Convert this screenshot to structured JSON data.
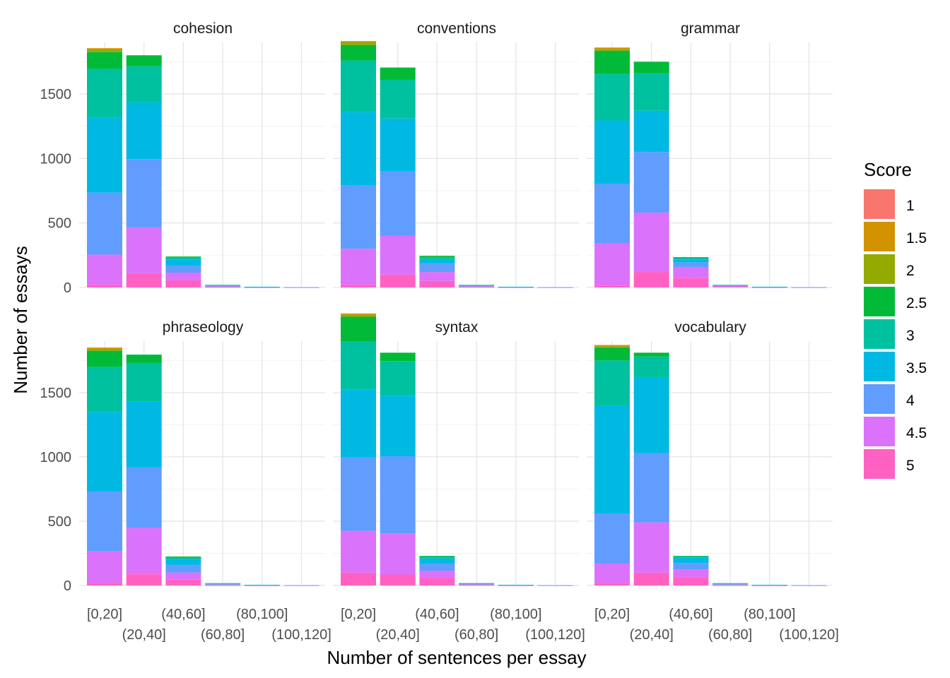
{
  "chart_data": {
    "type": "bar",
    "stacked": true,
    "xlabel": "Number of sentences per essay",
    "ylabel": "Number of essays",
    "ylim": [
      0,
      1900
    ],
    "yticks": [
      0,
      500,
      1000,
      1500
    ],
    "grid": true,
    "categories": [
      "[0,20]",
      "(20,40]",
      "(40,60]",
      "(60,80]",
      "(80,100]",
      "(100,120]"
    ],
    "legend": {
      "title": "Score",
      "placement": "right",
      "entries": [
        "1",
        "1.5",
        "2",
        "2.5",
        "3",
        "3.5",
        "4",
        "4.5",
        "5"
      ],
      "colors": [
        "#F8766D",
        "#D39200",
        "#93AA00",
        "#00BA38",
        "#00C19F",
        "#00B9E3",
        "#619CFF",
        "#DB72FB",
        "#FF61C3"
      ]
    },
    "facets": [
      {
        "title": "cohesion",
        "series_by_category": [
          [
            0,
            10,
            20,
            130,
            380,
            580,
            480,
            235,
            20
          ],
          [
            0,
            0,
            0,
            85,
            280,
            440,
            530,
            355,
            110
          ],
          [
            0,
            0,
            0,
            5,
            20,
            45,
            55,
            60,
            55
          ],
          [
            0,
            0,
            0,
            0,
            1,
            4,
            6,
            6,
            3
          ],
          [
            0,
            0,
            0,
            0,
            0,
            1,
            1,
            2,
            1
          ],
          [
            0,
            0,
            0,
            0,
            0,
            0,
            1,
            1,
            0
          ]
        ]
      },
      {
        "title": "conventions",
        "series_by_category": [
          [
            0,
            10,
            20,
            120,
            400,
            570,
            490,
            280,
            20
          ],
          [
            0,
            0,
            0,
            95,
            300,
            410,
            500,
            300,
            100
          ],
          [
            0,
            0,
            0,
            10,
            15,
            35,
            65,
            70,
            50
          ],
          [
            0,
            0,
            0,
            0,
            1,
            3,
            7,
            6,
            3
          ],
          [
            0,
            0,
            0,
            0,
            0,
            1,
            2,
            1,
            1
          ],
          [
            0,
            0,
            0,
            0,
            0,
            0,
            1,
            1,
            0
          ]
        ]
      },
      {
        "title": "grammar",
        "series_by_category": [
          [
            0,
            10,
            15,
            180,
            360,
            490,
            460,
            330,
            15
          ],
          [
            0,
            0,
            0,
            90,
            290,
            320,
            470,
            460,
            120
          ],
          [
            0,
            0,
            0,
            5,
            15,
            20,
            40,
            80,
            75
          ],
          [
            0,
            0,
            0,
            0,
            1,
            2,
            5,
            7,
            5
          ],
          [
            0,
            0,
            0,
            0,
            0,
            1,
            1,
            2,
            1
          ],
          [
            0,
            0,
            0,
            0,
            0,
            0,
            1,
            1,
            0
          ]
        ]
      },
      {
        "title": "phraseology",
        "series_by_category": [
          [
            0,
            10,
            15,
            125,
            350,
            620,
            465,
            245,
            20
          ],
          [
            0,
            0,
            0,
            65,
            300,
            510,
            470,
            360,
            90
          ],
          [
            0,
            0,
            0,
            10,
            10,
            45,
            60,
            55,
            45
          ],
          [
            0,
            0,
            0,
            0,
            1,
            4,
            6,
            5,
            2
          ],
          [
            0,
            0,
            0,
            0,
            0,
            1,
            1,
            2,
            1
          ],
          [
            0,
            0,
            0,
            0,
            0,
            0,
            1,
            1,
            0
          ]
        ]
      },
      {
        "title": "syntax",
        "series_by_category": [
          [
            0,
            10,
            15,
            190,
            375,
            530,
            570,
            325,
            100
          ],
          [
            0,
            0,
            0,
            65,
            270,
            470,
            600,
            320,
            85
          ],
          [
            0,
            0,
            0,
            5,
            15,
            40,
            55,
            55,
            60
          ],
          [
            0,
            0,
            0,
            0,
            1,
            3,
            5,
            6,
            3
          ],
          [
            0,
            0,
            0,
            0,
            0,
            1,
            1,
            2,
            1
          ],
          [
            0,
            0,
            0,
            0,
            0,
            0,
            1,
            1,
            0
          ]
        ]
      },
      {
        "title": "vocabulary",
        "series_by_category": [
          [
            0,
            10,
            10,
            100,
            350,
            840,
            390,
            150,
            20
          ],
          [
            0,
            0,
            0,
            30,
            160,
            590,
            540,
            390,
            100
          ],
          [
            0,
            0,
            0,
            5,
            10,
            40,
            50,
            60,
            65
          ],
          [
            0,
            0,
            0,
            0,
            1,
            4,
            6,
            5,
            2
          ],
          [
            0,
            0,
            0,
            0,
            0,
            1,
            1,
            2,
            1
          ],
          [
            0,
            0,
            0,
            0,
            0,
            0,
            1,
            1,
            0
          ]
        ]
      }
    ]
  }
}
